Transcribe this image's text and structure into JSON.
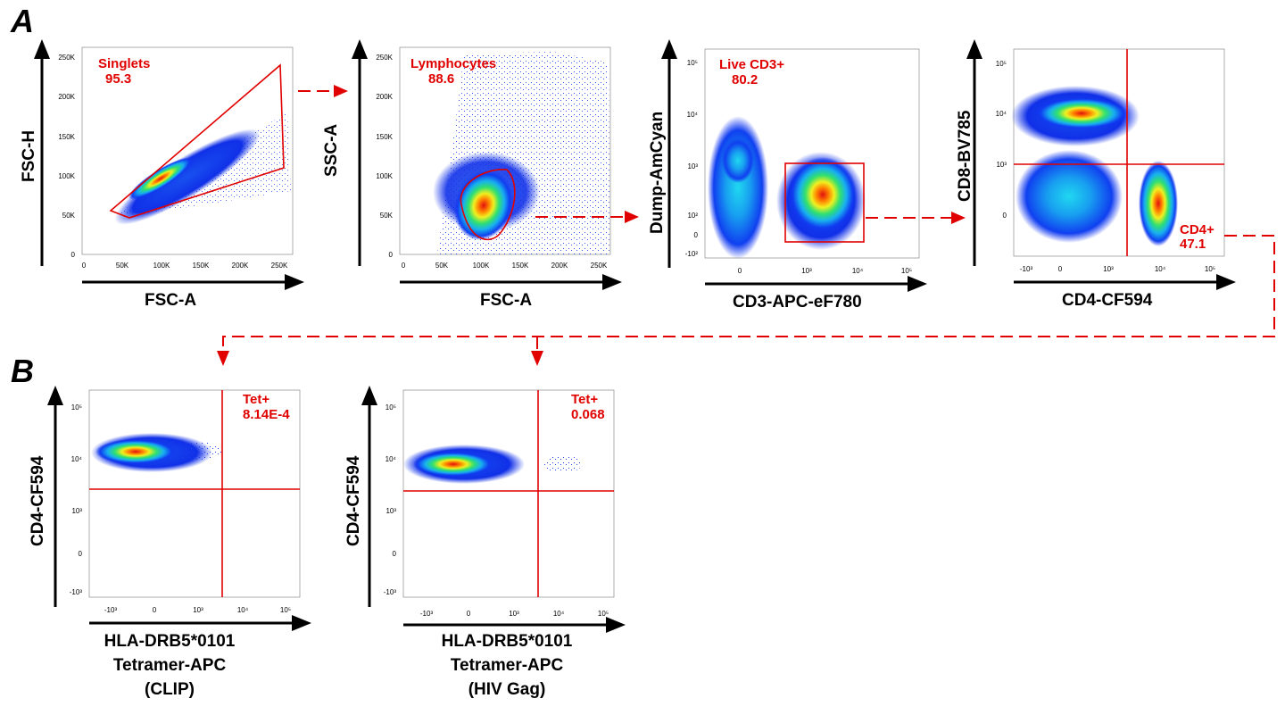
{
  "panel_labels": {
    "a": "A",
    "b": "B"
  },
  "colors": {
    "gate": "#e00000",
    "axis": "#000000"
  },
  "plots": {
    "singlets": {
      "x_label": "FSC-A",
      "y_label": "FSC-H",
      "x_ticks": [
        "0",
        "50K",
        "100K",
        "150K",
        "200K",
        "250K"
      ],
      "y_ticks": [
        "0",
        "50K",
        "100K",
        "150K",
        "200K",
        "250K"
      ],
      "gate_name": "Singlets",
      "gate_value": "95.3"
    },
    "lymphocytes": {
      "x_label": "FSC-A",
      "y_label": "SSC-A",
      "x_ticks": [
        "0",
        "50K",
        "100K",
        "150K",
        "200K",
        "250K"
      ],
      "y_ticks": [
        "0",
        "50K",
        "100K",
        "150K",
        "200K",
        "250K"
      ],
      "gate_name": "Lymphocytes",
      "gate_value": "88.6"
    },
    "live_cd3": {
      "x_label": "CD3-APC-eF780",
      "y_label": "Dump-AmCyan",
      "x_ticks": [
        "0",
        "10³",
        "10⁴",
        "10⁵"
      ],
      "y_ticks": [
        "-10²",
        "0",
        "10²",
        "10³",
        "10⁴",
        "10⁵"
      ],
      "gate_name": "Live CD3+",
      "gate_value": "80.2"
    },
    "cd4": {
      "x_label": "CD4-CF594",
      "y_label": "CD8-BV785",
      "x_ticks": [
        "-10³",
        "0",
        "10³",
        "10⁴",
        "10⁵"
      ],
      "y_ticks": [
        "0",
        "10³",
        "10⁴",
        "10⁵"
      ],
      "gate_name": "CD4+",
      "gate_value": "47.1"
    },
    "tet_clip": {
      "x_label_lines": [
        "HLA-DRB5*0101",
        "Tetramer-APC",
        "(CLIP)"
      ],
      "y_label": "CD4-CF594",
      "x_ticks": [
        "-10³",
        "0",
        "10³",
        "10⁴",
        "10⁵"
      ],
      "y_ticks": [
        "-10³",
        "0",
        "10³",
        "10⁴",
        "10⁵"
      ],
      "gate_name": "Tet+",
      "gate_value": "8.14E-4"
    },
    "tet_hiv": {
      "x_label_lines": [
        "HLA-DRB5*0101",
        "Tetramer-APC",
        "(HIV Gag)"
      ],
      "y_label": "CD4-CF594",
      "x_ticks": [
        "-10³",
        "0",
        "10³",
        "10⁴",
        "10⁵"
      ],
      "y_ticks": [
        "-10³",
        "0",
        "10³",
        "10⁴",
        "10⁵"
      ],
      "gate_name": "Tet+",
      "gate_value": "0.068"
    }
  }
}
